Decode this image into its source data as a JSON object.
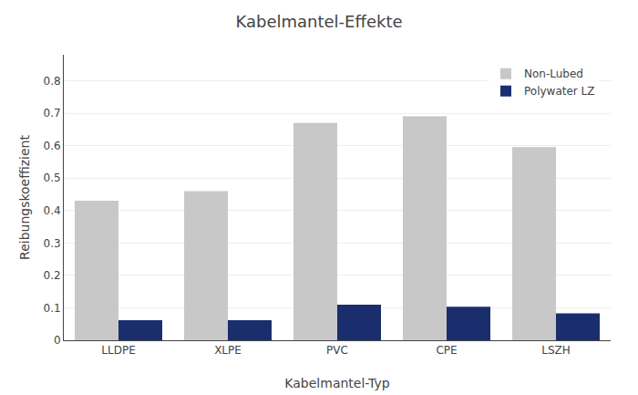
{
  "chart_data": {
    "type": "bar",
    "title": "Kabelmantel-Effekte",
    "xlabel": "Kabelmantel-Typ",
    "ylabel": "Reibungskoeffizient",
    "categories": [
      "LLDPE",
      "XLPE",
      "PVC",
      "CPE",
      "LSZH"
    ],
    "series": [
      {
        "name": "Non-Lubed",
        "color": "#c8c8c8",
        "values": [
          0.43,
          0.46,
          0.67,
          0.69,
          0.595
        ]
      },
      {
        "name": "Polywater LZ",
        "color": "#1a2e6e",
        "values": [
          0.062,
          0.062,
          0.11,
          0.103,
          0.083
        ]
      }
    ],
    "ylim": [
      0,
      0.88
    ],
    "yticks": [
      0,
      0.1,
      0.2,
      0.3,
      0.4,
      0.5,
      0.6,
      0.7,
      0.8
    ],
    "grid": true,
    "legend": "upper right"
  }
}
